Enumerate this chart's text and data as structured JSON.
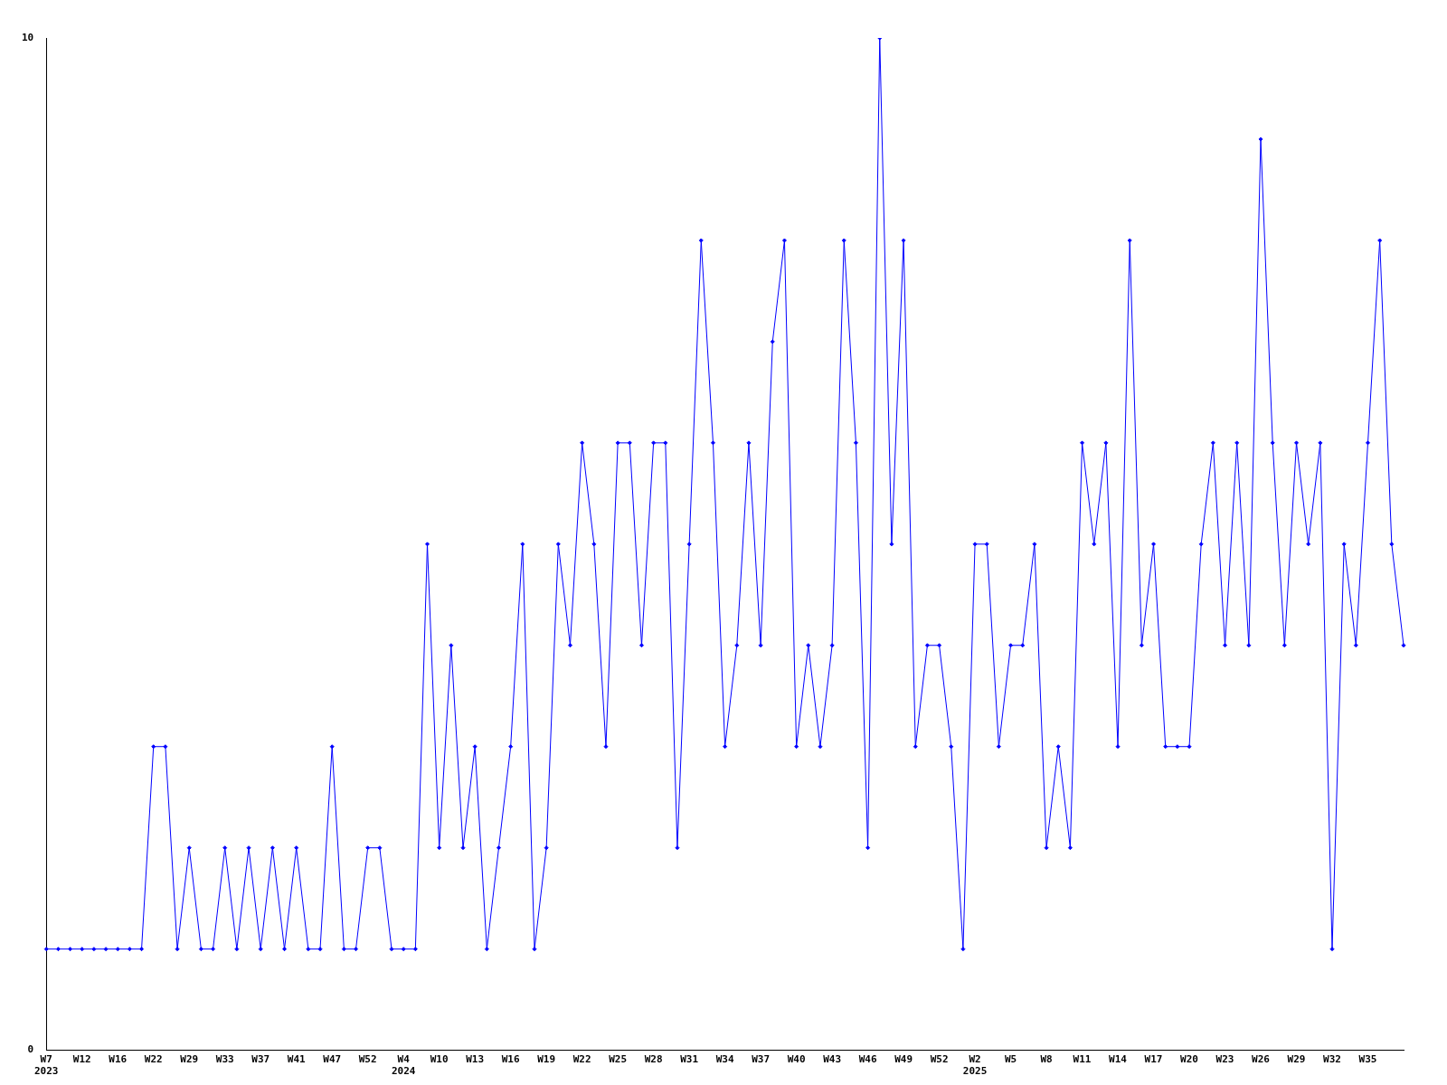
{
  "chart_data": {
    "type": "line",
    "categories": [
      "W7 2023",
      null,
      null,
      "W12",
      null,
      null,
      "W16",
      null,
      null,
      "W22",
      null,
      null,
      "W29",
      null,
      null,
      "W33",
      null,
      null,
      "W37",
      null,
      null,
      "W41",
      null,
      null,
      "W47",
      null,
      null,
      "W52",
      null,
      null,
      "W4 2024",
      null,
      null,
      "W10",
      null,
      null,
      "W13",
      null,
      null,
      "W16",
      null,
      null,
      "W19",
      null,
      null,
      "W22",
      null,
      null,
      "W25",
      null,
      null,
      "W28",
      null,
      null,
      "W31",
      null,
      null,
      "W34",
      null,
      null,
      "W37",
      null,
      null,
      "W40",
      null,
      null,
      "W43",
      null,
      null,
      "W46",
      null,
      null,
      "W49",
      null,
      null,
      "W52",
      null,
      null,
      "W2 2025",
      null,
      null,
      "W5",
      null,
      null,
      "W8",
      null,
      null,
      "W11",
      null,
      null,
      "W14",
      null,
      null,
      "W17",
      null,
      null,
      "W20",
      null,
      null,
      "W23",
      null,
      null,
      "W26",
      null,
      null,
      "W29",
      null,
      null,
      "W32",
      null,
      null,
      "W35",
      null,
      null,
      null
    ],
    "series": [
      {
        "color": "#0000ff",
        "values": [
          1,
          1,
          1,
          1,
          1,
          1,
          1,
          1,
          1,
          3,
          3,
          1,
          2,
          1,
          1,
          2,
          1,
          2,
          1,
          2,
          1,
          2,
          1,
          1,
          3,
          1,
          1,
          2,
          2,
          1,
          1,
          1,
          5,
          2,
          4,
          2,
          3,
          1,
          2,
          3,
          5,
          1,
          2,
          5,
          4,
          6,
          5,
          3,
          6,
          6,
          4,
          6,
          6,
          2,
          5,
          8,
          6,
          3,
          4,
          6,
          4,
          7,
          8,
          3,
          4,
          3,
          4,
          8,
          6,
          2,
          10,
          5,
          8,
          3,
          4,
          4,
          3,
          1,
          5,
          5,
          3,
          4,
          4,
          5,
          2,
          3,
          2,
          6,
          5,
          6,
          3,
          8,
          4,
          5,
          3,
          3,
          3,
          5,
          6,
          4,
          6,
          4,
          9,
          6,
          4,
          6,
          5,
          6,
          1,
          5,
          4,
          6,
          8,
          5,
          4
        ]
      }
    ],
    "ylim": [
      0,
      10
    ],
    "yticks": [
      0,
      10
    ],
    "marker": "diamond",
    "legend": false
  }
}
